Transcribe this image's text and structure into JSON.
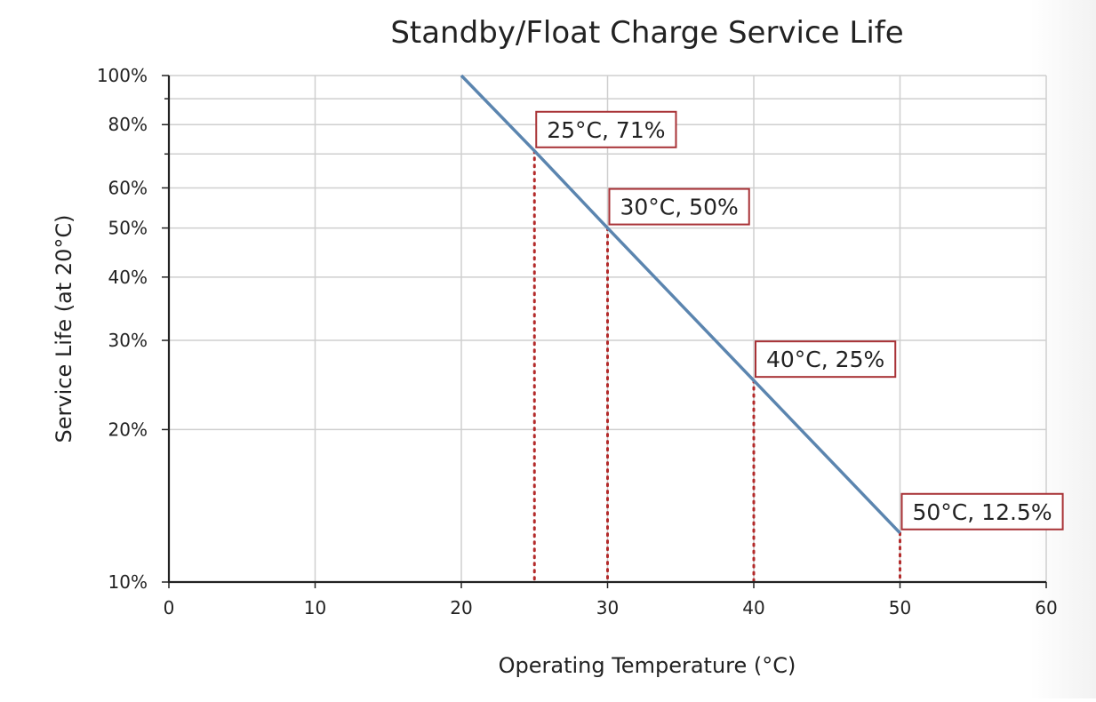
{
  "chart_data": {
    "type": "line",
    "title": "Standby/Float Charge Service Life",
    "xlabel": "Operating Temperature (°C)",
    "ylabel": "Service Life (at 20°C)",
    "xlim": [
      0,
      60
    ],
    "ylim": [
      10,
      100
    ],
    "yscale": "log",
    "grid": true,
    "x_ticks": [
      0,
      10,
      20,
      30,
      40,
      50,
      60
    ],
    "x_tick_labels": [
      "0",
      "10",
      "20",
      "30",
      "40",
      "50",
      "60"
    ],
    "y_ticks": [
      10,
      20,
      30,
      40,
      50,
      60,
      80,
      100
    ],
    "y_tick_labels": [
      "10%",
      "20%",
      "30%",
      "40%",
      "50%",
      "60%",
      "80%",
      "100%"
    ],
    "y_minor_ticks": [
      70,
      90
    ],
    "series": [
      {
        "x": [
          20,
          25,
          30,
          40,
          50
        ],
        "y": [
          100,
          71,
          50,
          25,
          12.5
        ],
        "color": "#5b85af"
      }
    ],
    "annotations": [
      {
        "x": 25,
        "y": 71,
        "label": "25°C, 71%"
      },
      {
        "x": 30,
        "y": 50,
        "label": "30°C, 50%"
      },
      {
        "x": 40,
        "y": 25,
        "label": "40°C, 25%"
      },
      {
        "x": 50,
        "y": 12.5,
        "label": "50°C, 12.5%"
      }
    ],
    "colors": {
      "annotation_border": "#a83236",
      "drop_line": "#b32a2a",
      "grid": "#cfcfcf"
    }
  }
}
